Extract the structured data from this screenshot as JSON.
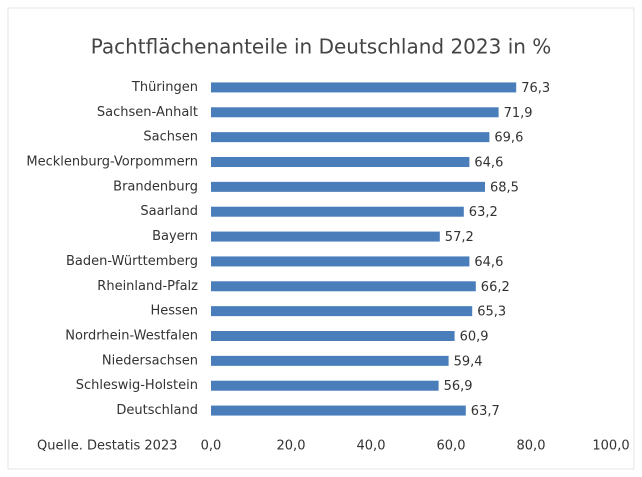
{
  "chart_data": {
    "type": "barh",
    "title": "Pachtflächenanteile in Deutschland 2023 in %",
    "annotation": "Quelle. Destatis 2023",
    "categories": [
      "Thüringen",
      "Sachsen-Anhalt",
      "Sachsen",
      "Mecklenburg-Vorpommern",
      "Brandenburg",
      "Saarland",
      "Bayern",
      "Baden-Württemberg",
      "Rheinland-Pfalz",
      "Hessen",
      "Nordrhein-Westfalen",
      "Niedersachsen",
      "Schleswig-Holstein",
      "Deutschland"
    ],
    "values": [
      76.3,
      71.9,
      69.6,
      64.6,
      68.5,
      63.2,
      57.2,
      64.6,
      66.2,
      65.3,
      60.9,
      59.4,
      56.9,
      63.7
    ],
    "value_labels": [
      "76,3",
      "71,9",
      "69,6",
      "64,6",
      "68,5",
      "63,2",
      "57,2",
      "64,6",
      "66,2",
      "65,3",
      "60,9",
      "59,4",
      "56,9",
      "63,7"
    ],
    "color": "#4a7ebb",
    "xlim": [
      0,
      100
    ],
    "xticks": [
      {
        "value": 0,
        "label": "0,0"
      },
      {
        "value": 20,
        "label": "20,0"
      },
      {
        "value": 40,
        "label": "40,0"
      },
      {
        "value": 60,
        "label": "60,0"
      },
      {
        "value": 80,
        "label": "80,0"
      },
      {
        "value": 100,
        "label": "100,0"
      }
    ],
    "grid": false
  }
}
